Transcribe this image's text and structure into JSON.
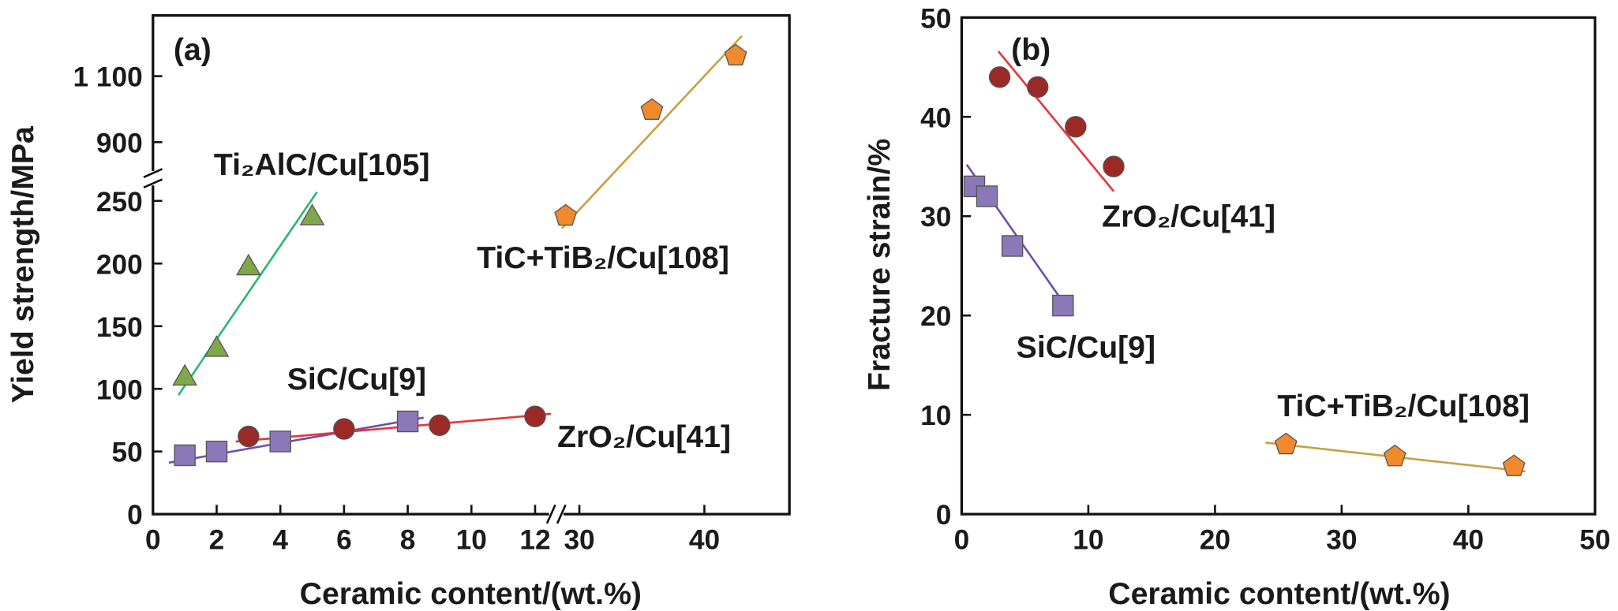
{
  "chart_data": [
    {
      "type": "scatter",
      "panel_label": "(a)",
      "x_label": "Ceramic content/(wt.%)",
      "y_label": "Yield strength/MPa",
      "xlim": [
        0,
        46.8
      ],
      "xbreak": [
        12.6,
        28.4
      ],
      "ylim": [
        0,
        1284
      ],
      "ybreak": [
        266,
        800
      ],
      "xticks": [
        0,
        2,
        4,
        6,
        8,
        10,
        12,
        30,
        40
      ],
      "yticks": [
        0,
        50,
        100,
        150,
        200,
        250,
        900,
        {
          "value": 1100,
          "label": "1 100"
        }
      ],
      "series": [
        {
          "name": "Ti₂AlC/Cu[105]",
          "marker": "triangle",
          "color": "#7ea84a",
          "line_color": "#2ab673",
          "x": [
            1,
            2,
            3,
            5
          ],
          "values": [
            110,
            133,
            198,
            238
          ],
          "fit_x": [
            0.8,
            5.15
          ],
          "fit_y": [
            95,
            257
          ]
        },
        {
          "name": "SiC/Cu[9]",
          "marker": "square",
          "color": "#8a78b8",
          "line_color": "#6a4fb0",
          "x": [
            1,
            2,
            4,
            8
          ],
          "values": [
            47,
            50,
            58,
            74
          ],
          "fit_x": [
            0.5,
            8.5
          ],
          "fit_y": [
            41,
            77
          ]
        },
        {
          "name": "ZrO₂/Cu[41]",
          "marker": "circle",
          "color": "#9b2a26",
          "line_color": "#e8343a",
          "x": [
            3,
            6,
            9,
            12
          ],
          "values": [
            62,
            68,
            71,
            78
          ],
          "fit_x": [
            2.6,
            12.5
          ],
          "fit_y": [
            58,
            80
          ]
        },
        {
          "name": "TiC+TiB₂/Cu[108]",
          "marker": "pentagon",
          "color": "#f08a2c",
          "line_color": "#c8a040",
          "x": [
            28.9,
            35.8,
            42.5
          ],
          "values": [
            238,
            997,
            1162
          ],
          "fit_x": [
            28.6,
            43
          ],
          "fit_y": [
            228,
            1222
          ]
        }
      ]
    },
    {
      "type": "scatter",
      "panel_label": "(b)",
      "x_label": "Ceramic content/(wt.%)",
      "y_label": "Fracture strain/%",
      "xlim": [
        0,
        50
      ],
      "ylim": [
        0,
        50
      ],
      "xticks": [
        0,
        10,
        20,
        30,
        40,
        50
      ],
      "yticks": [
        0,
        10,
        20,
        30,
        40,
        50
      ],
      "series": [
        {
          "name": "ZrO₂/Cu[41]",
          "marker": "circle",
          "color": "#9b2a26",
          "line_color": "#e8343a",
          "x": [
            3,
            6,
            9,
            12
          ],
          "values": [
            44,
            43,
            39,
            35
          ],
          "fit_x": [
            2.9,
            12
          ],
          "fit_y": [
            46.6,
            32.5
          ]
        },
        {
          "name": "SiC/Cu[9]",
          "marker": "square",
          "color": "#8a78b8",
          "line_color": "#6a4fb0",
          "x": [
            1,
            2,
            4,
            8
          ],
          "values": [
            33,
            32,
            27,
            21
          ],
          "fit_x": [
            0.4,
            8.2
          ],
          "fit_y": [
            35.2,
            21
          ]
        },
        {
          "name": "TiC+TiB₂/Cu[108]",
          "marker": "pentagon",
          "color": "#f08a2c",
          "line_color": "#c8a040",
          "x": [
            25.6,
            34.2,
            43.6
          ],
          "values": [
            7,
            5.8,
            4.8
          ],
          "fit_x": [
            24,
            44.5
          ],
          "fit_y": [
            7.2,
            4.3
          ]
        }
      ]
    }
  ]
}
